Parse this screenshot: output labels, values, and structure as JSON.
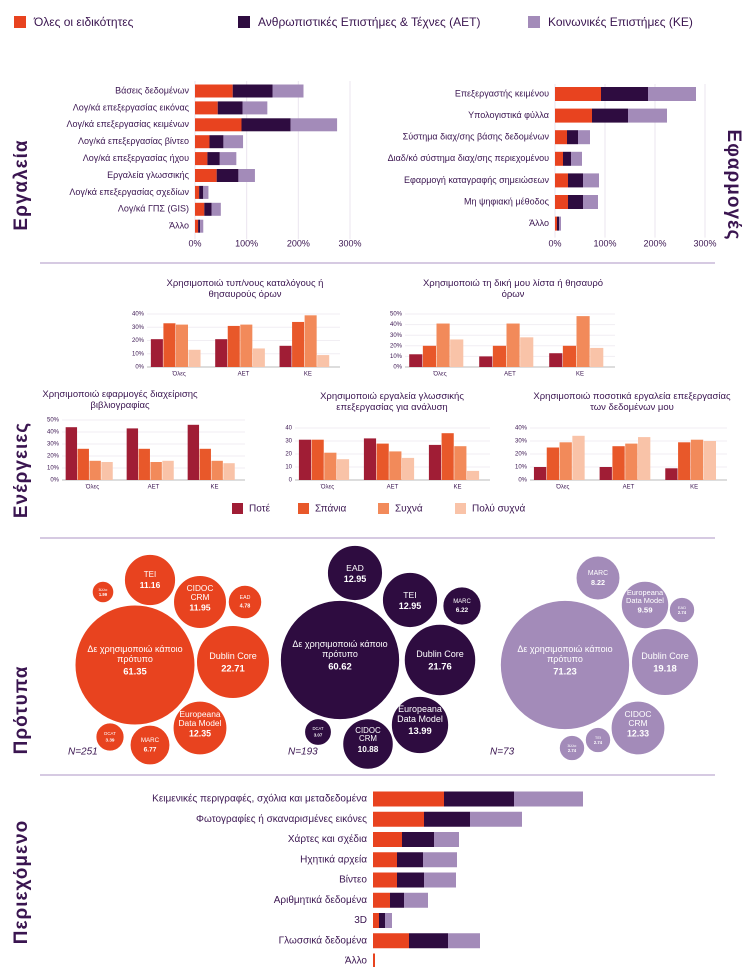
{
  "sections": [
    "Εργαλεία",
    "Εφαρμογές",
    "Ενέργειες",
    "Πρότυπα",
    "Περιεχόμενο"
  ],
  "chart_data": [
    {
      "type": "hbar",
      "categories": [
        "Βάσεις δεδομένων",
        "Λογ/κά επεξεργασίας εικόνας",
        "Λογ/κά επεξεργασίας κειμένων",
        "Λογ/κά επεξεργασίας βίντεο",
        "Λογ/κά επεξεργασίας ήχου",
        "Εργαλεία γλωσσικής",
        "Λογ/κά επεξεργασίας σχεδίων",
        "Λογ/κά ΓΠΣ (GIS)",
        "Άλλο"
      ],
      "series": [
        {
          "name": "Όλες οι ειδικότητες",
          "color": "#e8431f",
          "values": [
            73,
            44,
            90,
            28,
            24,
            42,
            8,
            18,
            6
          ]
        },
        {
          "name": "Ανθρωπιστικές Επιστήμες & Τέχνες (ΑΕΤ)",
          "color": "#2e0c40",
          "values": [
            77,
            48,
            95,
            27,
            24,
            42,
            8,
            14,
            4
          ]
        },
        {
          "name": "Κοινωνικές Επιστήμες (ΚΕ)",
          "color": "#a38bb9",
          "values": [
            60,
            48,
            90,
            38,
            32,
            32,
            10,
            18,
            6
          ]
        }
      ],
      "xlim": [
        0,
        300
      ],
      "xticks": [
        {
          "value": 0,
          "label": "0%"
        },
        {
          "value": 100,
          "label": "100%"
        },
        {
          "value": 200,
          "label": "200%"
        },
        {
          "value": 300,
          "label": "300%"
        }
      ]
    },
    {
      "type": "hbar",
      "categories": [
        "Επεξεργαστής κειμένου",
        "Υπολογιστικά φύλλα",
        "Σύστημα διαχ/σης βάσης δεδομένων",
        "Διαδ/κό σύστημα διαχ/σης περιεχομένου",
        "Εφαρμογή καταγραφής σημειώσεων",
        "Μη ψηφιακή μέθοδος",
        "Άλλο"
      ],
      "series": [
        {
          "color": "#e8431f",
          "values": [
            92,
            74,
            24,
            16,
            26,
            26,
            4
          ]
        },
        {
          "color": "#2e0c40",
          "values": [
            94,
            72,
            22,
            16,
            30,
            30,
            4
          ]
        },
        {
          "color": "#a38bb9",
          "values": [
            96,
            78,
            24,
            22,
            32,
            30,
            4
          ]
        }
      ],
      "xlim": [
        0,
        300
      ],
      "xticks": [
        {
          "value": 0,
          "label": "0%"
        },
        {
          "value": 100,
          "label": "100%"
        },
        {
          "value": 200,
          "label": "200%"
        },
        {
          "value": 300,
          "label": "300%"
        }
      ]
    },
    {
      "type": "grouped",
      "title": "Χρησιμοποιώ τυπ/νους καταλόγους ή θησαυρούς όρων",
      "categories": [
        "Όλες",
        "ΑΕΤ",
        "ΚΕ"
      ],
      "series": [
        {
          "name": "Ποτέ",
          "color": "#a01d35",
          "values": [
            21,
            21,
            16
          ]
        },
        {
          "name": "Σπάνια",
          "color": "#e8582a",
          "values": [
            33,
            31,
            34
          ]
        },
        {
          "name": "Συχνά",
          "color": "#f28a5a",
          "values": [
            32,
            32,
            39
          ]
        },
        {
          "name": "Πολύ συχνά",
          "color": "#f9c3a8",
          "values": [
            13,
            14,
            9
          ]
        }
      ],
      "ylim": [
        0,
        40
      ],
      "yticks": [
        {
          "value": 0,
          "label": "0%"
        },
        {
          "value": 10,
          "label": "10%"
        },
        {
          "value": 20,
          "label": "20%"
        },
        {
          "value": 30,
          "label": "30%"
        },
        {
          "value": 40,
          "label": "40%"
        }
      ]
    },
    {
      "type": "grouped",
      "title": "Χρησιμοποιώ τη δική μου λίστα ή θησαυρό όρων",
      "categories": [
        "Όλες",
        "ΑΕΤ",
        "ΚΕ"
      ],
      "series": [
        {
          "color": "#a01d35",
          "values": [
            12,
            10,
            13
          ]
        },
        {
          "color": "#e8582a",
          "values": [
            20,
            20,
            20
          ]
        },
        {
          "color": "#f28a5a",
          "values": [
            41,
            41,
            48
          ]
        },
        {
          "color": "#f9c3a8",
          "values": [
            26,
            28,
            18
          ]
        }
      ],
      "ylim": [
        0,
        50
      ],
      "yticks": [
        {
          "value": 0,
          "label": "0%"
        },
        {
          "value": 10,
          "label": "10%"
        },
        {
          "value": 20,
          "label": "20%"
        },
        {
          "value": 30,
          "label": "30%"
        },
        {
          "value": 40,
          "label": "40%"
        },
        {
          "value": 50,
          "label": "50%"
        }
      ]
    },
    {
      "type": "grouped",
      "title": "Χρησιμοποιώ εφαρμογές διαχείρισης βιβλιογραφίας",
      "categories": [
        "Όλες",
        "ΑΕΤ",
        "ΚΕ"
      ],
      "series": [
        {
          "color": "#a01d35",
          "values": [
            44,
            43,
            46
          ]
        },
        {
          "color": "#e8582a",
          "values": [
            26,
            26,
            26
          ]
        },
        {
          "color": "#f28a5a",
          "values": [
            16,
            15,
            16
          ]
        },
        {
          "color": "#f9c3a8",
          "values": [
            15,
            16,
            14
          ]
        }
      ],
      "ylim": [
        0,
        50
      ],
      "yticks": [
        {
          "value": 0,
          "label": "0%"
        },
        {
          "value": 10,
          "label": "10%"
        },
        {
          "value": 20,
          "label": "20%"
        },
        {
          "value": 30,
          "label": "30%"
        },
        {
          "value": 40,
          "label": "40%"
        },
        {
          "value": 50,
          "label": "50%"
        }
      ]
    },
    {
      "type": "grouped",
      "title": "Χρησιμοποιώ εργαλεία γλωσσικής επεξεργασίας για ανάλυση",
      "categories": [
        "Όλες",
        "ΑΕΤ",
        "ΚΕ"
      ],
      "series": [
        {
          "color": "#a01d35",
          "values": [
            31,
            32,
            27
          ]
        },
        {
          "color": "#e8582a",
          "values": [
            31,
            28,
            36
          ]
        },
        {
          "color": "#f28a5a",
          "values": [
            21,
            22,
            26
          ]
        },
        {
          "color": "#f9c3a8",
          "values": [
            16,
            17,
            7
          ]
        }
      ],
      "ylim": [
        0,
        40
      ],
      "yticks": [
        0,
        10,
        20,
        30,
        40
      ]
    },
    {
      "type": "grouped",
      "title": "Χρησιμοποιώ ποσοτικά εργαλεία επεξεργασίας των δεδομένων μου",
      "categories": [
        "Όλες",
        "ΑΕΤ",
        "ΚΕ"
      ],
      "series": [
        {
          "color": "#a01d35",
          "values": [
            10,
            10,
            9
          ]
        },
        {
          "color": "#e8582a",
          "values": [
            25,
            26,
            29
          ]
        },
        {
          "color": "#f28a5a",
          "values": [
            29,
            28,
            31
          ]
        },
        {
          "color": "#f9c3a8",
          "values": [
            34,
            33,
            30
          ]
        }
      ],
      "ylim": [
        0,
        40
      ],
      "yticks": [
        {
          "value": 0,
          "label": "0%"
        },
        {
          "value": 10,
          "label": "10%"
        },
        {
          "value": 20,
          "label": "20%"
        },
        {
          "value": 30,
          "label": "30%"
        },
        {
          "value": 40,
          "label": "40%"
        }
      ]
    },
    {
      "type": "bubble",
      "color": "#e8431f",
      "note": "N=251",
      "labels": [
        "Δε χρησιμοποιώ κάποιο πρότυπο",
        "Dublin Core",
        "TEI",
        "CIDOC CRM",
        "EAD",
        "Europeana Data Model",
        "MARC",
        "Άλλο",
        "DCAT"
      ],
      "values": [
        61.35,
        22.71,
        11.16,
        11.95,
        4.78,
        12.35,
        6.77,
        1.99,
        3.39
      ]
    },
    {
      "type": "bubble",
      "color": "#2e0c40",
      "note": "N=193",
      "labels": [
        "Δε χρησιμοποιώ κάποιο πρότυπο",
        "Dublin Core",
        "EAD",
        "TEI",
        "MARC",
        "Europeana Data Model",
        "CIDOC CRM",
        "DCAT"
      ],
      "values": [
        60.62,
        21.76,
        12.95,
        12.95,
        6.22,
        13.99,
        10.88,
        3.07
      ]
    },
    {
      "type": "bubble",
      "color": "#a38bb9",
      "note": "N=73",
      "labels": [
        "Δε χρησιμοποιώ κάποιο πρότυπο",
        "Dublin Core",
        "MARC",
        "Europeana Data Model",
        "EAD",
        "CIDOC CRM",
        "TEI",
        "Άλλο"
      ],
      "values": [
        71.23,
        19.18,
        8.22,
        9.59,
        2.74,
        12.33,
        2.74,
        2.74
      ]
    },
    {
      "type": "hbar",
      "categories": [
        "Κειμενικές περιγραφές, σχόλια και μεταδεδομένα",
        "Φωτογραφίες ή σκαναρισμένες εικόνες",
        "Χάρτες και σχέδια",
        "Ηχητικά αρχεία",
        "Βίντεο",
        "Αριθμητικά δεδομένα",
        "3D",
        "Γλωσσικά δεδομένα",
        "Άλλο"
      ],
      "series": [
        {
          "color": "#e8431f",
          "values": [
            71,
            51,
            29,
            24,
            24,
            17,
            6,
            36,
            2
          ]
        },
        {
          "color": "#2e0c40",
          "values": [
            70,
            46,
            32,
            26,
            27,
            14,
            6,
            39,
            0
          ]
        },
        {
          "color": "#a38bb9",
          "values": [
            69,
            52,
            25,
            34,
            32,
            24,
            7,
            32,
            0
          ]
        }
      ],
      "xlim": [
        0,
        300
      ]
    }
  ]
}
